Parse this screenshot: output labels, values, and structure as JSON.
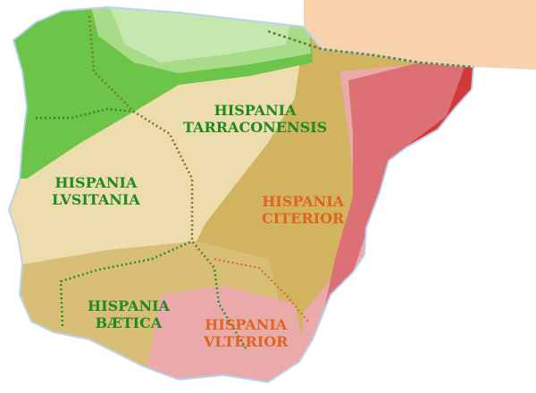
{
  "colors": {
    "water": "#ffffff",
    "france": "#f7d2ac",
    "base_beige": "#ecdcae",
    "tan": "#d2b460",
    "light_green": "#c6e8ae",
    "green": "#6cc548",
    "pink": "#eaaaaa",
    "red": "#dc7075",
    "dark_red": "#d23a3a",
    "label_green": "#1f8a1f",
    "label_orange": "#e0641e",
    "border_dots": "#2e8b2e"
  },
  "labels": {
    "tarraconensis": {
      "line1": "HISPANIA",
      "line2": "TARRACONENSIS"
    },
    "lusitania": {
      "line1": "HISPANIA",
      "line2": "LVSITANIA"
    },
    "citerior": {
      "line1": "HISPANIA",
      "line2": "CITERIOR"
    },
    "baetica": {
      "line1": "HISPANIA",
      "line2": "BÆTICA"
    },
    "ulterior": {
      "line1": "HISPANIA",
      "line2": "VLTERIOR"
    }
  }
}
